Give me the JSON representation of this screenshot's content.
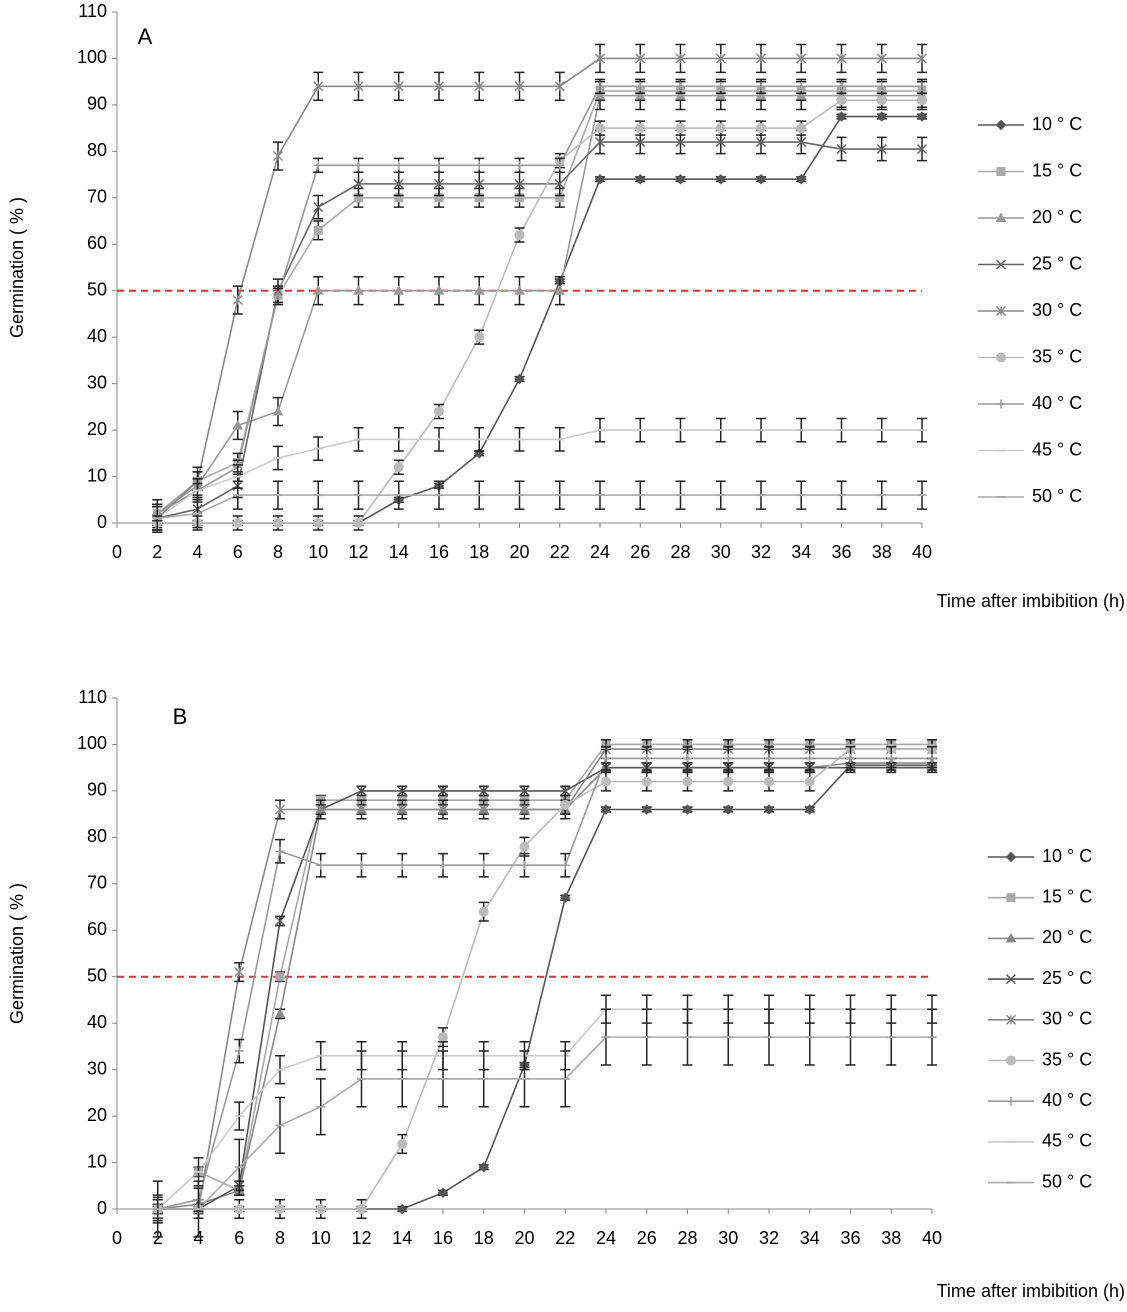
{
  "chart_data": [
    {
      "type": "line",
      "panel_label": "A",
      "ylabel": "Germination ( % )",
      "xlabel": "Time after imbibition (h)",
      "x": [
        2,
        4,
        6,
        8,
        10,
        12,
        14,
        16,
        18,
        20,
        22,
        24,
        26,
        28,
        30,
        32,
        34,
        36,
        38,
        40
      ],
      "xlim": [
        0,
        40
      ],
      "xticks": [
        0,
        2,
        4,
        6,
        8,
        10,
        12,
        14,
        16,
        18,
        20,
        22,
        24,
        26,
        28,
        30,
        32,
        34,
        36,
        38,
        40
      ],
      "ylim": [
        0,
        110
      ],
      "yticks": [
        0,
        10,
        20,
        30,
        40,
        50,
        60,
        70,
        80,
        90,
        100,
        110
      ],
      "reference_line": {
        "value": 50,
        "color": "#e03030"
      },
      "legend": "right",
      "error_color": "#222222",
      "series": [
        {
          "name": "10 ° C",
          "color": "#555555",
          "marker": "diamond",
          "error": 0.5,
          "values": [
            0,
            0,
            0,
            0,
            0,
            0,
            5,
            8,
            15,
            31,
            52,
            74,
            74,
            74,
            74,
            74,
            74,
            87.5,
            87.5,
            87.5
          ]
        },
        {
          "name": "15 ° C",
          "color": "#aaaaaa",
          "marker": "square",
          "error": 2,
          "values": [
            2,
            9,
            13,
            49,
            63,
            70,
            70,
            70,
            70,
            70,
            70,
            93,
            93,
            93,
            93,
            93,
            93,
            93,
            93,
            93
          ]
        },
        {
          "name": "20 ° C",
          "color": "#999999",
          "marker": "triangle",
          "error": 3,
          "values": [
            2,
            8,
            21,
            24,
            50,
            50,
            50,
            50,
            50,
            50,
            50,
            92,
            92,
            92,
            92,
            92,
            92,
            92,
            92,
            92
          ]
        },
        {
          "name": "25 ° C",
          "color": "#666666",
          "marker": "x",
          "error": 2.5,
          "values": [
            1,
            3,
            8,
            50,
            68,
            73,
            73,
            73,
            73,
            73,
            73,
            82,
            82,
            82,
            82,
            82,
            82,
            80.5,
            80.5,
            80.5
          ]
        },
        {
          "name": "30 ° C",
          "color": "#888888",
          "marker": "star",
          "error": 3,
          "values": [
            1,
            9,
            48,
            79,
            94,
            94,
            94,
            94,
            94,
            94,
            94,
            100,
            100,
            100,
            100,
            100,
            100,
            100,
            100,
            100
          ]
        },
        {
          "name": "35 ° C",
          "color": "#bbbbbb",
          "marker": "circle",
          "error": 1.5,
          "values": [
            0,
            0,
            0,
            0,
            0,
            0,
            12,
            24,
            40,
            62,
            78,
            85,
            85,
            85,
            85,
            85,
            85,
            91,
            91,
            91
          ]
        },
        {
          "name": "40 ° C",
          "color": "#999999",
          "marker": "plus",
          "error": 1.5,
          "values": [
            2,
            7,
            12,
            49,
            77,
            77,
            77,
            77,
            77,
            77,
            77,
            94,
            94,
            94,
            94,
            94,
            94,
            94,
            94,
            94
          ]
        },
        {
          "name": "45 ° C",
          "color": "#cccccc",
          "marker": "dash",
          "error": 2.5,
          "values": [
            1,
            7,
            10,
            14,
            16,
            18,
            18,
            18,
            18,
            18,
            18,
            20,
            20,
            20,
            20,
            20,
            20,
            20,
            20,
            20
          ]
        },
        {
          "name": "50 ° C",
          "color": "#aaaaaa",
          "marker": "dash",
          "error": 3,
          "values": [
            1,
            2,
            6,
            6,
            6,
            6,
            6,
            6,
            6,
            6,
            6,
            6,
            6,
            6,
            6,
            6,
            6,
            6,
            6,
            6
          ]
        }
      ]
    },
    {
      "type": "line",
      "panel_label": "B",
      "ylabel": "Germination ( % )",
      "xlabel": "Time after imbibition (h)",
      "x": [
        2,
        4,
        6,
        8,
        10,
        12,
        14,
        16,
        18,
        20,
        22,
        24,
        26,
        28,
        30,
        32,
        34,
        36,
        38,
        40
      ],
      "xlim": [
        0,
        40
      ],
      "xticks": [
        0,
        2,
        4,
        6,
        8,
        10,
        12,
        14,
        16,
        18,
        20,
        22,
        24,
        26,
        28,
        30,
        32,
        34,
        36,
        38,
        40
      ],
      "ylim": [
        0,
        110
      ],
      "yticks": [
        0,
        10,
        20,
        30,
        40,
        50,
        60,
        70,
        80,
        90,
        100,
        110
      ],
      "reference_line": {
        "value": 50,
        "color": "#e03030"
      },
      "legend": "right",
      "error_color": "#222222",
      "series": [
        {
          "name": "10 ° C",
          "color": "#555555",
          "marker": "diamond",
          "error": 0.5,
          "values": [
            0,
            0,
            0,
            0,
            0,
            0,
            0,
            3.5,
            9,
            31,
            67,
            86,
            86,
            86,
            86,
            86,
            86,
            95.5,
            95.5,
            95.5
          ]
        },
        {
          "name": "15 ° C",
          "color": "#aaaaaa",
          "marker": "square",
          "error": 1,
          "values": [
            0,
            8,
            4,
            50,
            88,
            88,
            88,
            88,
            88,
            88,
            88,
            100,
            100,
            100,
            100,
            100,
            100,
            100,
            100,
            100
          ]
        },
        {
          "name": "20 ° C",
          "color": "#888888",
          "marker": "triangle",
          "error": 1,
          "values": [
            0,
            1,
            4,
            42,
            86,
            86,
            86,
            86,
            86,
            86,
            86,
            95,
            95,
            95,
            95,
            95,
            95,
            96,
            96,
            96
          ]
        },
        {
          "name": "25 ° C",
          "color": "#555555",
          "marker": "x",
          "error": 1,
          "values": [
            0,
            0,
            5,
            62,
            86,
            90,
            90,
            90,
            90,
            90,
            90,
            95,
            95,
            95,
            95,
            95,
            95,
            95,
            95,
            95
          ]
        },
        {
          "name": "30 ° C",
          "color": "#888888",
          "marker": "star",
          "error": 2,
          "values": [
            0,
            0,
            51,
            86,
            86,
            86,
            86,
            86,
            86,
            86,
            86,
            99,
            99,
            99,
            99,
            99,
            99,
            99,
            99,
            99
          ]
        },
        {
          "name": "35 ° C",
          "color": "#bbbbbb",
          "marker": "circle",
          "error": 2,
          "values": [
            0,
            0,
            0,
            0,
            0,
            0,
            14,
            37,
            64,
            78,
            87,
            92,
            92,
            92,
            92,
            92,
            92,
            99,
            99,
            99
          ]
        },
        {
          "name": "40 ° C",
          "color": "#999999",
          "marker": "plus",
          "error": 2.5,
          "values": [
            0,
            2,
            34,
            77,
            74,
            74,
            74,
            74,
            74,
            74,
            74,
            97,
            97,
            97,
            97,
            97,
            97,
            97,
            97,
            97
          ]
        },
        {
          "name": "45 ° C",
          "color": "#cccccc",
          "marker": "dash",
          "error": 3,
          "values": [
            0,
            8,
            20,
            30,
            33,
            33,
            33,
            33,
            33,
            33,
            33,
            43,
            43,
            43,
            43,
            43,
            43,
            43,
            43,
            43
          ]
        },
        {
          "name": "50 ° C",
          "color": "#aaaaaa",
          "marker": "dash",
          "error": 6,
          "values": [
            0,
            0,
            9,
            18,
            22,
            28,
            28,
            28,
            28,
            28,
            28,
            37,
            37,
            37,
            37,
            37,
            37,
            37,
            37,
            37
          ]
        }
      ]
    }
  ]
}
